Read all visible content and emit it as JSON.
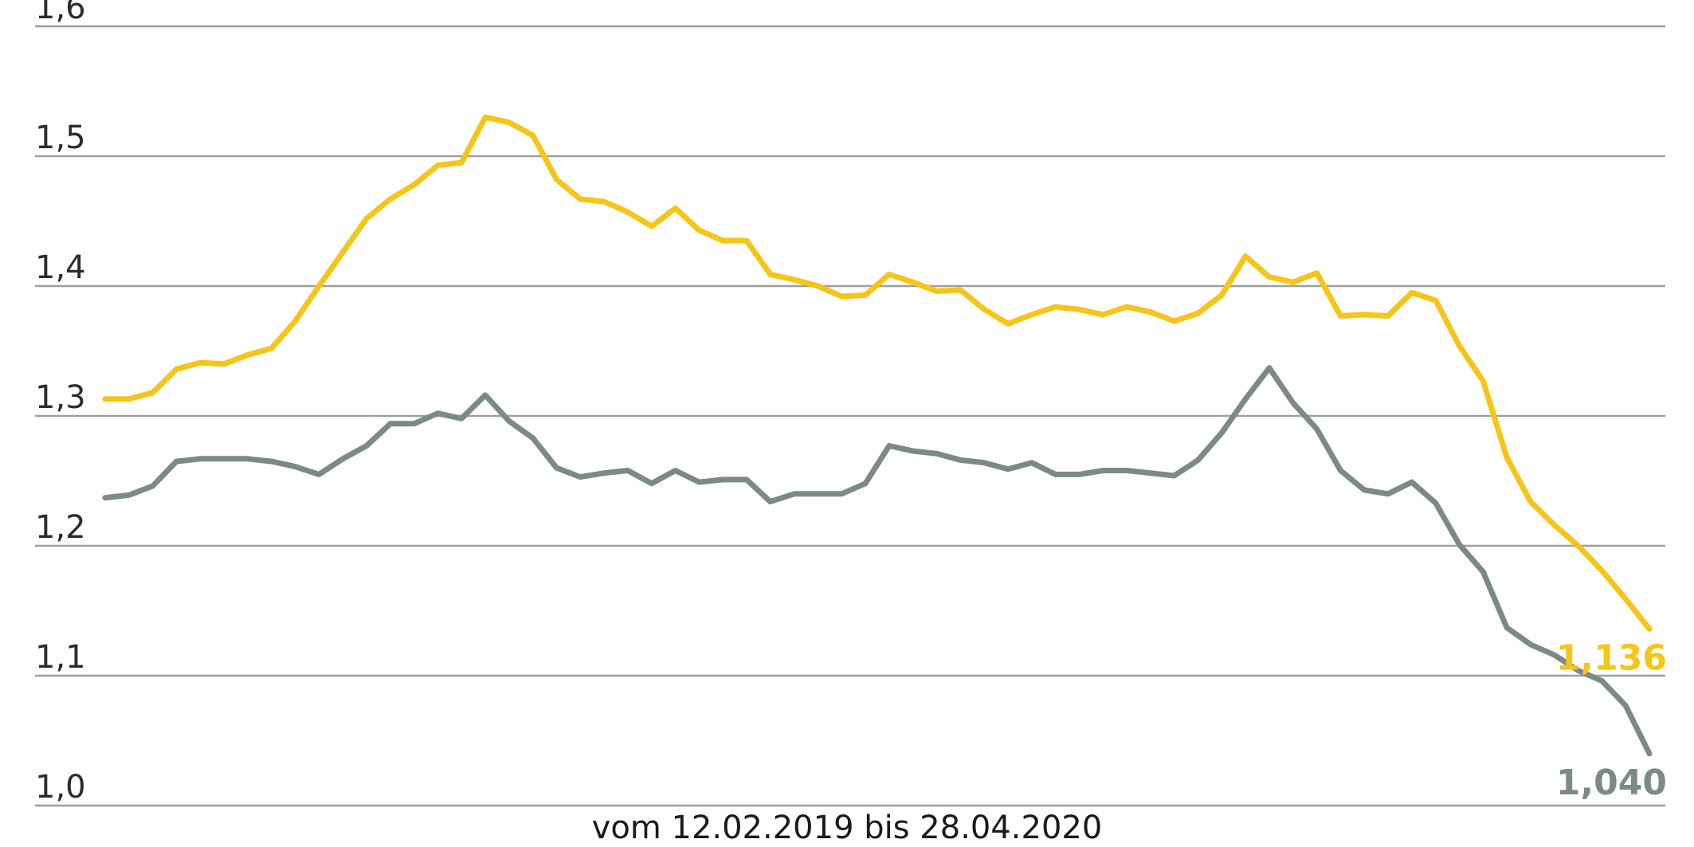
{
  "chart_data": {
    "type": "line",
    "title": "",
    "xlabel": "vom 12.02.2019 bis 28.04.2020",
    "ylabel": "",
    "ylim": [
      1.0,
      1.6
    ],
    "grid": true,
    "yticks": [
      {
        "value": 1.0,
        "label": "1,0"
      },
      {
        "value": 1.1,
        "label": "1,1"
      },
      {
        "value": 1.2,
        "label": "1,2"
      },
      {
        "value": 1.3,
        "label": "1,3"
      },
      {
        "value": 1.4,
        "label": "1,4"
      },
      {
        "value": 1.5,
        "label": "1,5"
      },
      {
        "value": 1.6,
        "label": "1,6"
      }
    ],
    "series": [
      {
        "color": "#f5c518",
        "end_label": "1,136",
        "values": [
          1.313,
          1.313,
          1.318,
          1.336,
          1.341,
          1.34,
          1.347,
          1.352,
          1.373,
          1.4,
          1.426,
          1.452,
          1.467,
          1.478,
          1.493,
          1.495,
          1.53,
          1.526,
          1.516,
          1.482,
          1.467,
          1.465,
          1.457,
          1.446,
          1.46,
          1.443,
          1.435,
          1.435,
          1.409,
          1.405,
          1.4,
          1.392,
          1.393,
          1.409,
          1.403,
          1.396,
          1.397,
          1.382,
          1.371,
          1.378,
          1.384,
          1.382,
          1.378,
          1.384,
          1.38,
          1.373,
          1.379,
          1.393,
          1.423,
          1.407,
          1.403,
          1.41,
          1.377,
          1.378,
          1.377,
          1.395,
          1.389,
          1.354,
          1.327,
          1.268,
          1.234,
          1.216,
          1.2,
          1.181,
          1.159,
          1.136
        ]
      },
      {
        "color": "#7c8a86",
        "end_label": "1,040",
        "values": [
          1.237,
          1.239,
          1.246,
          1.265,
          1.267,
          1.267,
          1.267,
          1.265,
          1.261,
          1.255,
          1.267,
          1.277,
          1.294,
          1.294,
          1.302,
          1.298,
          1.316,
          1.296,
          1.283,
          1.26,
          1.253,
          1.256,
          1.258,
          1.248,
          1.258,
          1.249,
          1.251,
          1.251,
          1.234,
          1.24,
          1.24,
          1.24,
          1.248,
          1.277,
          1.273,
          1.271,
          1.266,
          1.264,
          1.259,
          1.264,
          1.255,
          1.255,
          1.258,
          1.258,
          1.256,
          1.254,
          1.266,
          1.287,
          1.313,
          1.337,
          1.31,
          1.29,
          1.258,
          1.243,
          1.24,
          1.249,
          1.233,
          1.201,
          1.18,
          1.137,
          1.124,
          1.116,
          1.104,
          1.096,
          1.077,
          1.04
        ]
      }
    ]
  }
}
